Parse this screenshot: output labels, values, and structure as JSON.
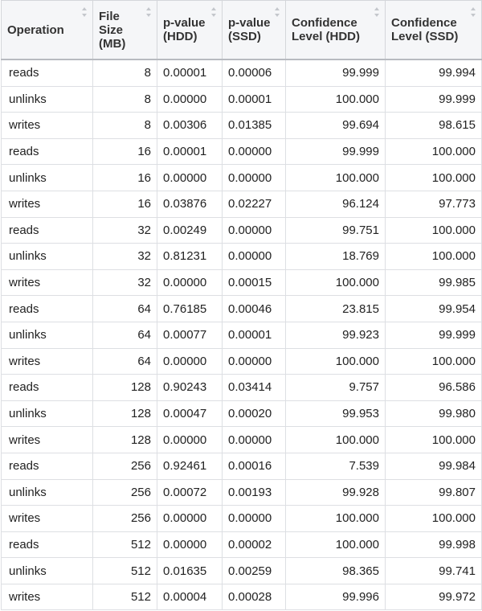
{
  "table": {
    "columns": [
      {
        "label": "Operation",
        "align": "left"
      },
      {
        "label": "File Size (MB)",
        "align": "right"
      },
      {
        "label": "p-value (HDD)",
        "align": "left"
      },
      {
        "label": "p-value (SSD)",
        "align": "left"
      },
      {
        "label": "Confidence Level (HDD)",
        "align": "right"
      },
      {
        "label": "Confidence Level (SSD)",
        "align": "right"
      }
    ],
    "rows": [
      [
        "reads",
        "8",
        "0.00001",
        "0.00006",
        "99.999",
        "99.994"
      ],
      [
        "unlinks",
        "8",
        "0.00000",
        "0.00001",
        "100.000",
        "99.999"
      ],
      [
        "writes",
        "8",
        "0.00306",
        "0.01385",
        "99.694",
        "98.615"
      ],
      [
        "reads",
        "16",
        "0.00001",
        "0.00000",
        "99.999",
        "100.000"
      ],
      [
        "unlinks",
        "16",
        "0.00000",
        "0.00000",
        "100.000",
        "100.000"
      ],
      [
        "writes",
        "16",
        "0.03876",
        "0.02227",
        "96.124",
        "97.773"
      ],
      [
        "reads",
        "32",
        "0.00249",
        "0.00000",
        "99.751",
        "100.000"
      ],
      [
        "unlinks",
        "32",
        "0.81231",
        "0.00000",
        "18.769",
        "100.000"
      ],
      [
        "writes",
        "32",
        "0.00000",
        "0.00015",
        "100.000",
        "99.985"
      ],
      [
        "reads",
        "64",
        "0.76185",
        "0.00046",
        "23.815",
        "99.954"
      ],
      [
        "unlinks",
        "64",
        "0.00077",
        "0.00001",
        "99.923",
        "99.999"
      ],
      [
        "writes",
        "64",
        "0.00000",
        "0.00000",
        "100.000",
        "100.000"
      ],
      [
        "reads",
        "128",
        "0.90243",
        "0.03414",
        "9.757",
        "96.586"
      ],
      [
        "unlinks",
        "128",
        "0.00047",
        "0.00020",
        "99.953",
        "99.980"
      ],
      [
        "writes",
        "128",
        "0.00000",
        "0.00000",
        "100.000",
        "100.000"
      ],
      [
        "reads",
        "256",
        "0.92461",
        "0.00016",
        "7.539",
        "99.984"
      ],
      [
        "unlinks",
        "256",
        "0.00072",
        "0.00193",
        "99.928",
        "99.807"
      ],
      [
        "writes",
        "256",
        "0.00000",
        "0.00000",
        "100.000",
        "100.000"
      ],
      [
        "reads",
        "512",
        "0.00000",
        "0.00002",
        "100.000",
        "99.998"
      ],
      [
        "unlinks",
        "512",
        "0.01635",
        "0.00259",
        "98.365",
        "99.741"
      ],
      [
        "writes",
        "512",
        "0.00004",
        "0.00028",
        "99.996",
        "99.972"
      ]
    ]
  },
  "icons": {
    "sort": "sort-up-down-icon"
  },
  "colors": {
    "header_bg": "#f5f6f8",
    "border": "#dddfe3",
    "sort_icon": "#c4c7cc"
  }
}
